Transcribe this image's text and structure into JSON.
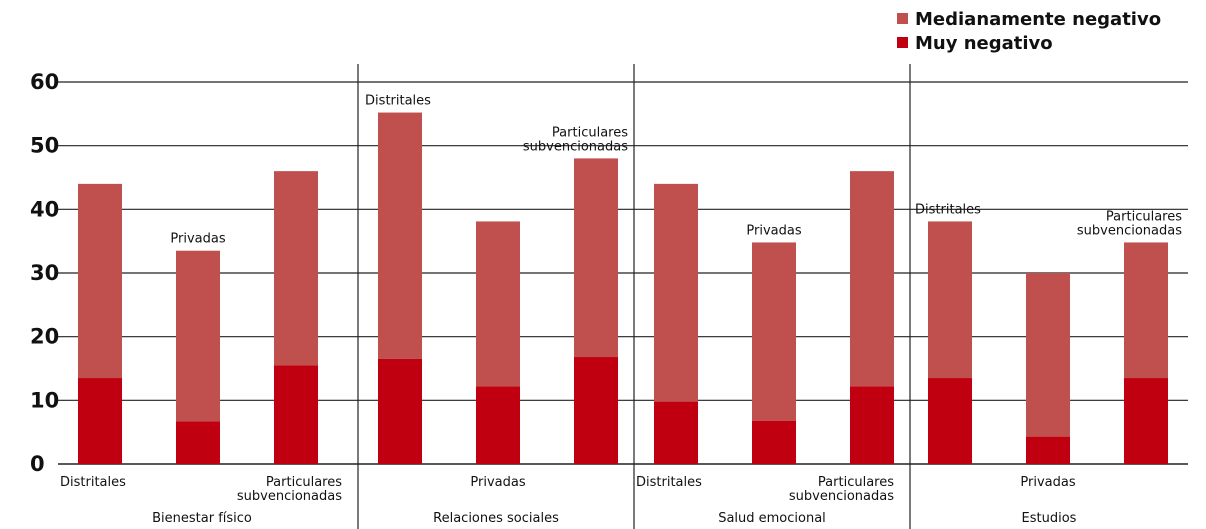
{
  "chart_data": {
    "type": "bar",
    "stacked": true,
    "ylim": [
      0,
      60
    ],
    "yticks": [
      0,
      10,
      20,
      30,
      40,
      50,
      60
    ],
    "grid": true,
    "legend": "top-right",
    "series": [
      {
        "name": "Medianamente negativo",
        "color": "#c0504d"
      },
      {
        "name": "Muy negativo",
        "color": "#c00010"
      }
    ],
    "groups": [
      {
        "name": "Bienestar físico",
        "bars": [
          {
            "label": [
              "Distritales"
            ],
            "label_pos": "below",
            "total": 44,
            "muy": 13.5
          },
          {
            "label": [
              "Privadas"
            ],
            "label_pos": "above",
            "total": 33.5,
            "muy": 6.7
          },
          {
            "label": [
              "Particulares",
              "subvencionadas"
            ],
            "label_pos": "below",
            "total": 46,
            "muy": 15.5
          }
        ]
      },
      {
        "name": "Relaciones sociales",
        "bars": [
          {
            "label": [
              "Distritales"
            ],
            "label_pos": "above",
            "total": 55.2,
            "muy": 16.5
          },
          {
            "label": [
              "Privadas"
            ],
            "label_pos": "below",
            "total": 38.1,
            "muy": 12.2
          },
          {
            "label": [
              "Particulares",
              "subvencionadas"
            ],
            "label_pos": "above",
            "total": 48,
            "muy": 16.8
          }
        ]
      },
      {
        "name": "Salud emocional",
        "bars": [
          {
            "label": [
              "Distritales"
            ],
            "label_pos": "below",
            "total": 44,
            "muy": 9.8
          },
          {
            "label": [
              "Privadas"
            ],
            "label_pos": "above",
            "total": 34.8,
            "muy": 6.8
          },
          {
            "label": [
              "Particulares",
              "subvencionadas"
            ],
            "label_pos": "below",
            "total": 46,
            "muy": 12.2
          }
        ]
      },
      {
        "name": "Estudios",
        "bars": [
          {
            "label": [
              "Distritales"
            ],
            "label_pos": "above",
            "total": 38.1,
            "muy": 13.5
          },
          {
            "label": [
              "Privadas"
            ],
            "label_pos": "below",
            "total": 30,
            "muy": 4.3
          },
          {
            "label": [
              "Particulares",
              "subvencionadas"
            ],
            "label_pos": "above",
            "total": 34.8,
            "muy": 13.5
          }
        ]
      }
    ]
  }
}
